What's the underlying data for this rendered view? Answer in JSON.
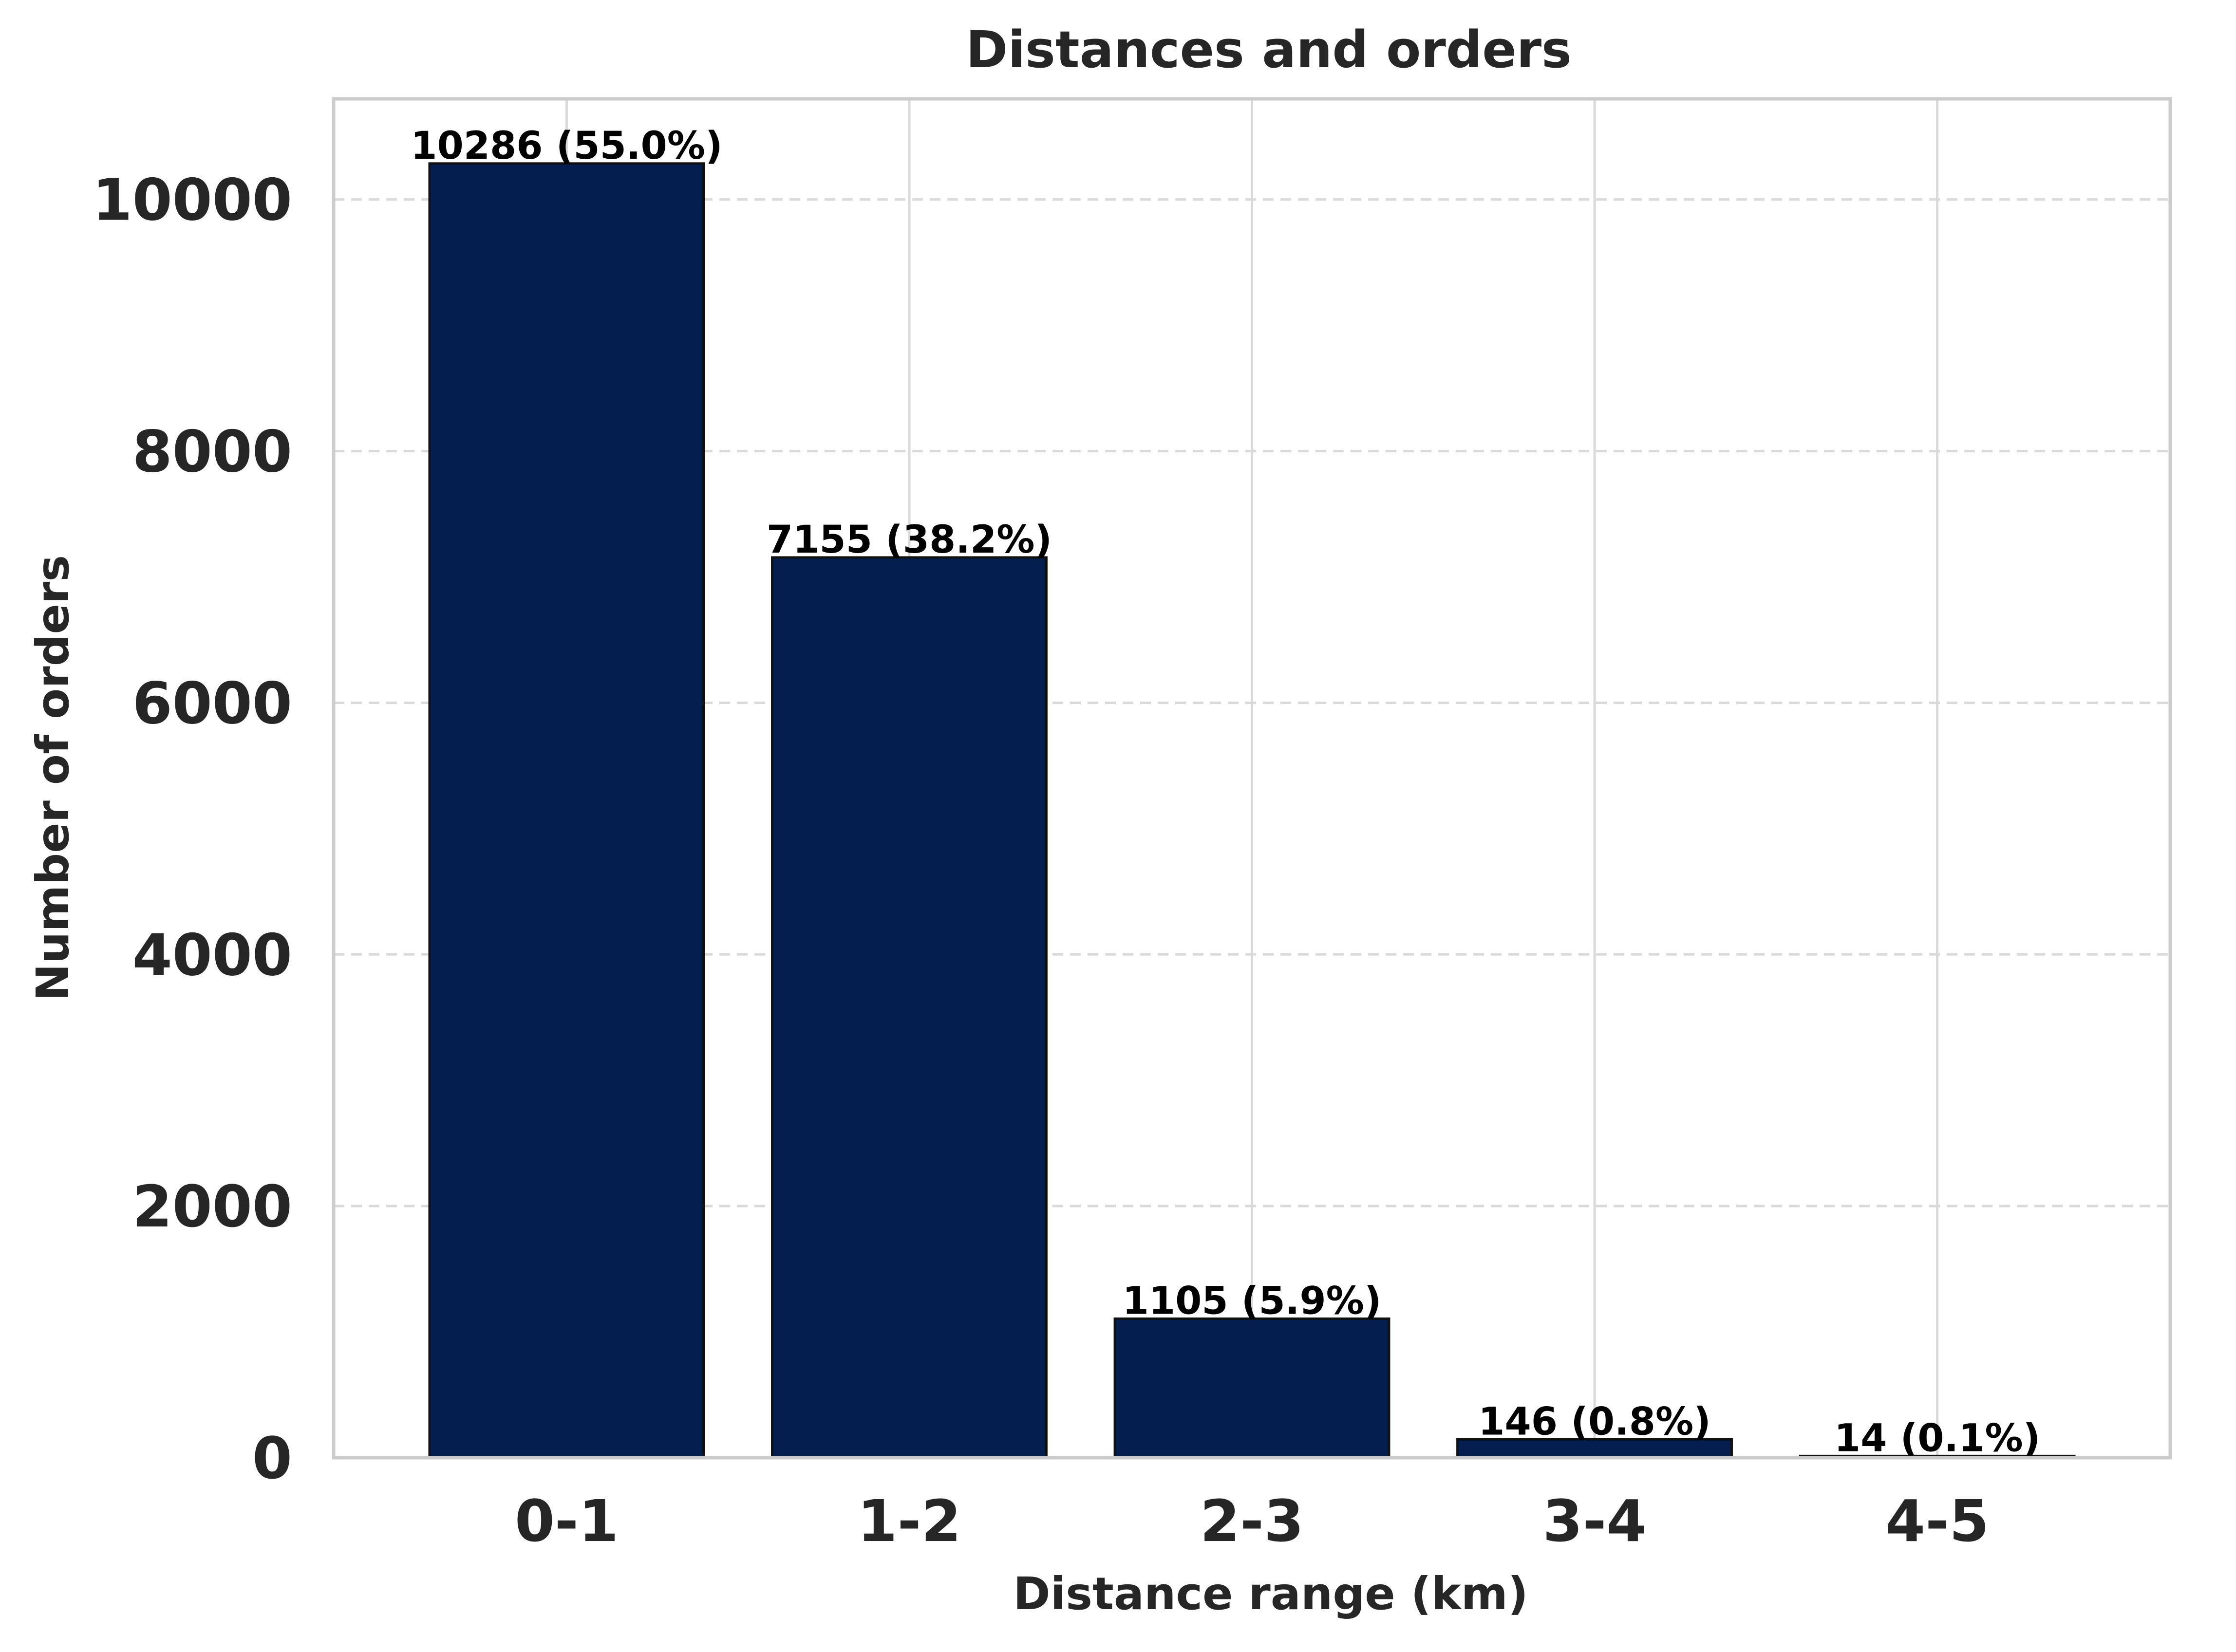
{
  "chart_data": {
    "type": "bar",
    "title": "Distances and orders",
    "xlabel": "Distance range (km)",
    "ylabel": "Number of orders",
    "categories": [
      "0-1",
      "1-2",
      "2-3",
      "3-4",
      "4-5"
    ],
    "values": [
      10286,
      7155,
      1105,
      146,
      14
    ],
    "data_labels": [
      "10286 (55.0%)",
      "7155 (38.2%)",
      "1105 (5.9%)",
      "146 (0.8%)",
      "14 (0.1%)"
    ],
    "ylim": [
      0,
      10800
    ],
    "yticks": [
      0,
      2000,
      4000,
      6000,
      8000,
      10000
    ],
    "ytick_labels": [
      "0",
      "2000",
      "4000",
      "6000",
      "8000",
      "10000"
    ],
    "grid": true,
    "colors": {
      "bar_fill": "#041e50",
      "bar_edge": "#111111",
      "grid": "#d9d9d9",
      "spine": "#cccccc",
      "text": "#262626"
    }
  }
}
